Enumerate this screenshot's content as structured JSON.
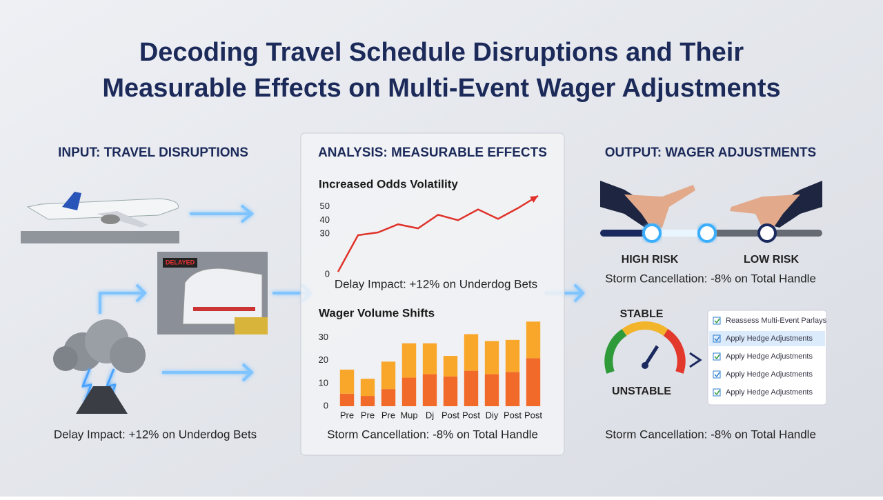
{
  "title": [
    "Decoding Travel Schedule Disruptions and Their",
    "Measurable Effects on Multi-Event Wager Adjustments"
  ],
  "input": {
    "heading": "INPUT: TRAVEL DISRUPTIONS",
    "sign": "DELAYED",
    "caption": "Delay Impact: +12% on Underdog Bets"
  },
  "analysis": {
    "heading": "ANALYSIS: MEASURABLE EFFECTS"
  },
  "chart_data": [
    {
      "type": "line",
      "title": "Increased Odds Volatility",
      "color": "#e0322a",
      "values": [
        2,
        29,
        31,
        37,
        34,
        44,
        40,
        48,
        41,
        49,
        58
      ],
      "ylim": [
        0,
        60
      ],
      "yticks": [
        0,
        30,
        40,
        50
      ],
      "caption": "Delay Impact: +12% on Underdog Bets"
    },
    {
      "type": "bar",
      "title": "Wager Volume Shifts",
      "categories": [
        "Pre",
        "Pre",
        "Pre",
        "Mup",
        "Dj",
        "Post",
        "Post",
        "Diy",
        "Post",
        "Post"
      ],
      "series": [
        {
          "color": "#f26a2a",
          "values": [
            5.5,
            4.5,
            7.5,
            12.5,
            14,
            13,
            15.5,
            14,
            15,
            21
          ]
        },
        {
          "color": "#f9a72b",
          "values": [
            10.5,
            7.5,
            12,
            15,
            13.5,
            9,
            16,
            14.5,
            14,
            16
          ]
        }
      ],
      "ylim": [
        0,
        38
      ],
      "yticks": [
        0,
        10,
        20,
        30
      ],
      "caption": "Storm Cancellation: -8% on Total Handle"
    }
  ],
  "output": {
    "heading": "OUTPUT: WAGER ADJUSTMENTS",
    "high": "HIGH RISK",
    "low": "LOW RISK",
    "risk_caption": "Storm Cancellation: -8% on Total Handle",
    "stable": "STABLE",
    "unstable": "UNSTABLE",
    "checklist": [
      "Reassess Multi-Event Parlays",
      "Apply Hedge Adjustments",
      "Apply Hedge Adjustments",
      "Apply Hedge Adjustments",
      "Apply Hedge Adjustments"
    ],
    "caption": "Storm Cancellation: -8% on Total Handle"
  }
}
